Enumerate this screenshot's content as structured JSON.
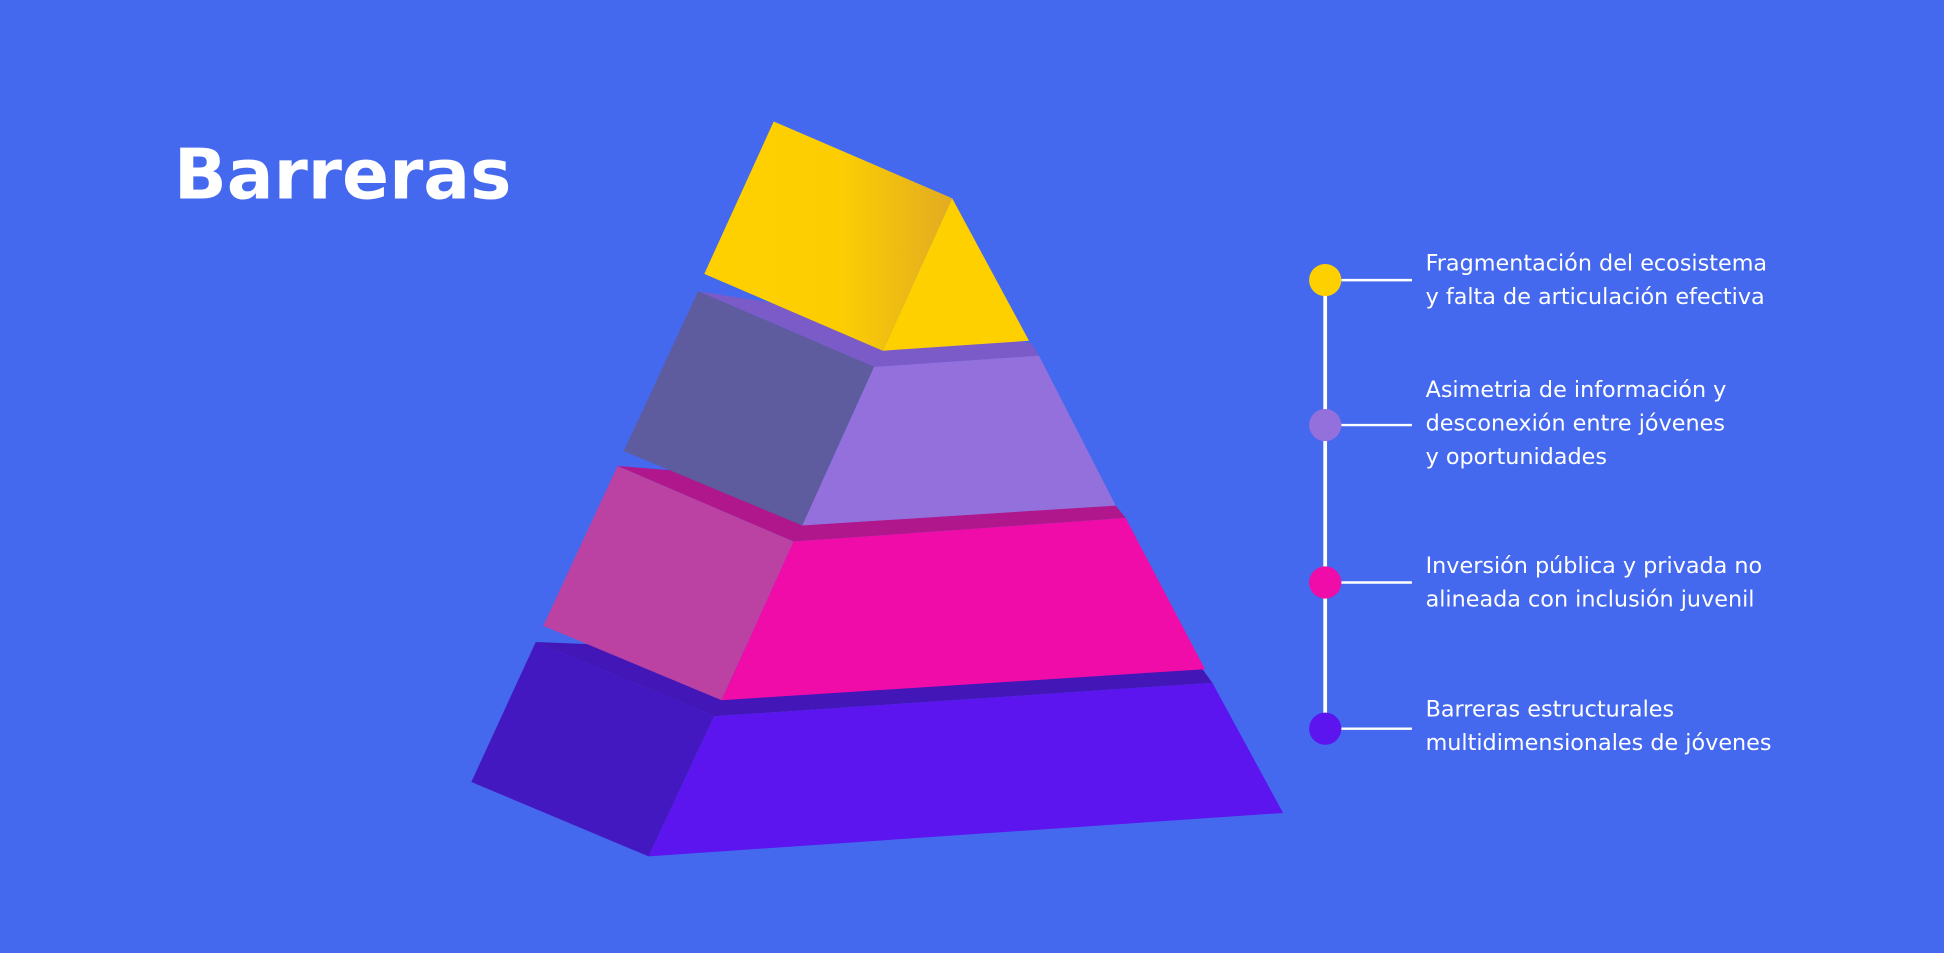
{
  "header": {
    "title": "Barreras"
  },
  "items": [
    {
      "lines": [
        "Fragmentación del ecosistema",
        "y falta de articulación efectiva"
      ]
    },
    {
      "lines": [
        "Asimetria de información y",
        "desconexión entre jóvenes",
        "y oportunidades"
      ]
    },
    {
      "lines": [
        "Inversión pública y privada no",
        "alineada con inclusión juvenil"
      ]
    },
    {
      "lines": [
        "Barreras estructurales",
        "multidimensionales de jóvenes"
      ]
    }
  ]
}
